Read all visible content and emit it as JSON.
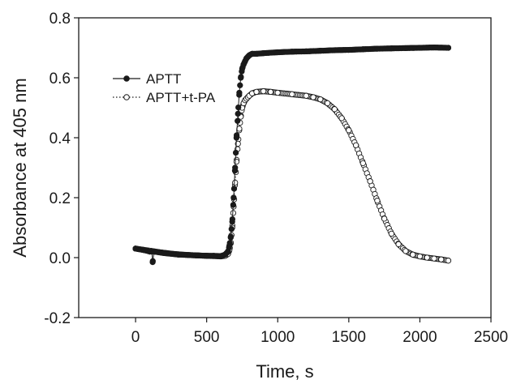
{
  "chart_data": {
    "type": "scatter",
    "title": "",
    "xlabel": "Time, s",
    "ylabel": "Absorbance at 405 nm",
    "xlim": [
      -400,
      2500
    ],
    "ylim": [
      -0.2,
      0.8
    ],
    "x_ticks": [
      0,
      500,
      1000,
      1500,
      2000,
      2500
    ],
    "x_tick_labels": [
      "0",
      "500",
      "1000",
      "1500",
      "2000",
      "2500"
    ],
    "y_ticks": [
      -0.2,
      0.0,
      0.2,
      0.4,
      0.6,
      0.8
    ],
    "y_tick_labels": [
      "-0.2",
      "0.0",
      "0.2",
      "0.4",
      "0.6",
      "0.8"
    ],
    "grid": false,
    "legend_position": "top-left",
    "series": [
      {
        "name": "APTT",
        "marker": "filled-circle",
        "line": "solid",
        "color": "#1a1a1a",
        "x": [
          0,
          60,
          100,
          115,
          120,
          130,
          200,
          300,
          400,
          500,
          550,
          600,
          630,
          650,
          660,
          670,
          680,
          690,
          700,
          710,
          720,
          730,
          740,
          750,
          760,
          770,
          780,
          790,
          800,
          820,
          850,
          900,
          1000,
          1100,
          1200,
          1300,
          1400,
          1500,
          1600,
          1700,
          1800,
          1900,
          2000,
          2100,
          2200
        ],
        "y": [
          0.03,
          0.025,
          0.02,
          0.02,
          -0.015,
          0.02,
          0.015,
          0.01,
          0.008,
          0.006,
          0.006,
          0.005,
          0.01,
          0.02,
          0.04,
          0.07,
          0.12,
          0.2,
          0.3,
          0.4,
          0.48,
          0.55,
          0.6,
          0.63,
          0.645,
          0.655,
          0.665,
          0.67,
          0.675,
          0.68,
          0.68,
          0.682,
          0.685,
          0.687,
          0.688,
          0.69,
          0.692,
          0.693,
          0.695,
          0.697,
          0.698,
          0.699,
          0.7,
          0.701,
          0.7
        ]
      },
      {
        "name": "APTT+t-PA",
        "marker": "open-circle",
        "line": "dotted",
        "color": "#1a1a1a",
        "x": [
          0,
          100,
          200,
          300,
          400,
          500,
          550,
          600,
          630,
          650,
          660,
          670,
          680,
          690,
          700,
          710,
          720,
          730,
          740,
          750,
          760,
          770,
          780,
          790,
          800,
          820,
          850,
          900,
          950,
          1000,
          1100,
          1200,
          1250,
          1300,
          1350,
          1400,
          1450,
          1500,
          1550,
          1600,
          1650,
          1700,
          1750,
          1800,
          1850,
          1900,
          1950,
          2000,
          2050,
          2100,
          2150,
          2200
        ],
        "y": [
          0.03,
          0.023,
          0.016,
          0.011,
          0.008,
          0.006,
          0.005,
          0.004,
          0.006,
          0.012,
          0.025,
          0.05,
          0.1,
          0.17,
          0.25,
          0.32,
          0.38,
          0.43,
          0.47,
          0.5,
          0.515,
          0.525,
          0.53,
          0.535,
          0.54,
          0.548,
          0.553,
          0.555,
          0.553,
          0.55,
          0.545,
          0.54,
          0.535,
          0.528,
          0.515,
          0.495,
          0.465,
          0.425,
          0.375,
          0.315,
          0.255,
          0.19,
          0.13,
          0.08,
          0.045,
          0.022,
          0.01,
          0.004,
          0.0,
          -0.003,
          -0.006,
          -0.01
        ]
      }
    ]
  }
}
